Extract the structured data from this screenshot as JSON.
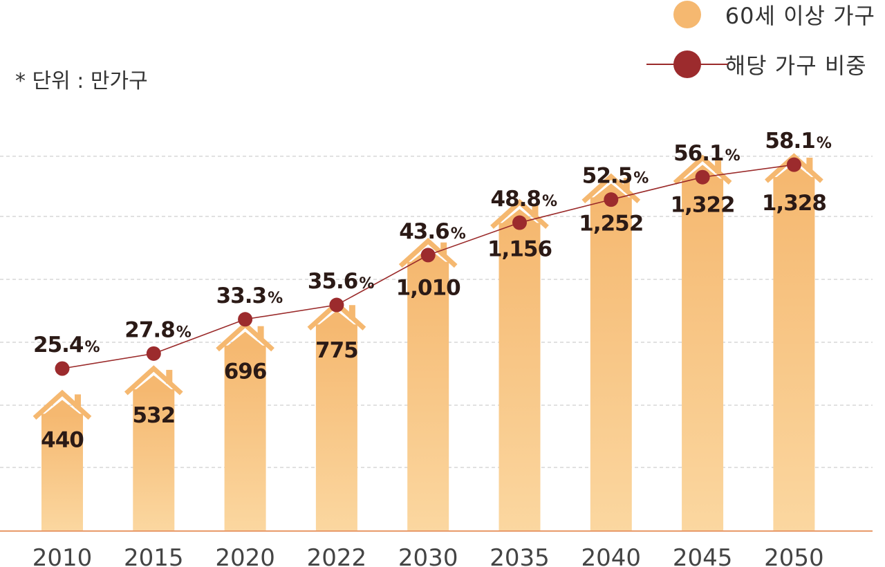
{
  "unit_note": "* 단위 : 만가구",
  "legend": {
    "bar_label": "60세 이상 가구",
    "line_label": "해당 가구 비중"
  },
  "colors": {
    "bar_top": "#f5b870",
    "bar_bottom": "#fbd7a0",
    "line": "#9a2a2a",
    "point": "#9c2b2d",
    "grid": "#cfcfcf",
    "baseline": "#e89a6a"
  },
  "chart_data": {
    "type": "bar",
    "categories": [
      "2010",
      "2015",
      "2020",
      "2022",
      "2030",
      "2035",
      "2040",
      "2045",
      "2050"
    ],
    "series": [
      {
        "name": "60세 이상 가구",
        "type": "bar",
        "values": [
          440,
          532,
          696,
          775,
          1010,
          1156,
          1252,
          1322,
          1328
        ],
        "labels": [
          "440",
          "532",
          "696",
          "775",
          "1,010",
          "1,156",
          "1,252",
          "1,322",
          "1,328"
        ]
      },
      {
        "name": "해당 가구 비중",
        "type": "line",
        "values": [
          25.4,
          27.8,
          33.3,
          35.6,
          43.6,
          48.8,
          52.5,
          56.1,
          58.1
        ],
        "labels": [
          "25.4",
          "27.8",
          "33.3",
          "35.6",
          "43.6",
          "48.8",
          "52.5",
          "56.1",
          "58.1"
        ],
        "unit": "%"
      }
    ],
    "grid": true,
    "legend_position": "top-right"
  }
}
